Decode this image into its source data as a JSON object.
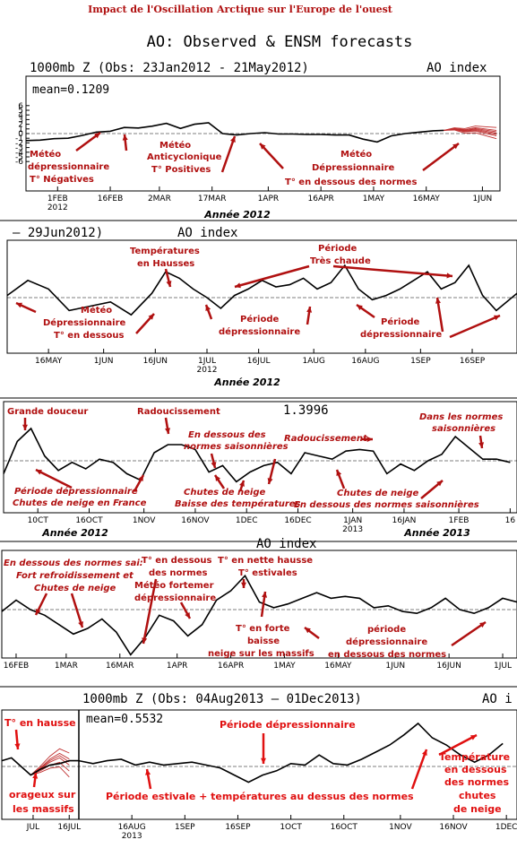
{
  "header": {
    "main_title": "Impact de l'Oscillation Arctique sur l'Europe de l'ouest",
    "subtitle": "AO: Observed & ENSM forecasts"
  },
  "colors": {
    "annotation": "#b01010",
    "annotation_bright": "#e01010",
    "forecast": "#c03030",
    "line": "#000000"
  },
  "chart_data": [
    {
      "type": "line",
      "title": "1000mb Z (Obs: 23Jan2012 - 21May2012)",
      "index_label": "AO index",
      "mean_label": "mean=0.1209",
      "year_label": "Année 2012",
      "ylim": [
        -6,
        6
      ],
      "yticks": [
        -6,
        -5,
        -4,
        -3,
        -2,
        -1,
        0,
        1,
        2,
        3,
        4,
        5,
        6
      ],
      "xrange": [
        0,
        135
      ],
      "xticks": [
        {
          "x": 9,
          "label": "1FEB",
          "sub": "2012"
        },
        {
          "x": 24,
          "label": "16FEB"
        },
        {
          "x": 38,
          "label": "2MAR"
        },
        {
          "x": 53,
          "label": "17MAR"
        },
        {
          "x": 69,
          "label": "1APR"
        },
        {
          "x": 84,
          "label": "16APR"
        },
        {
          "x": 99,
          "label": "1MAY"
        },
        {
          "x": 114,
          "label": "16MAY"
        },
        {
          "x": 130,
          "label": "1JUN"
        }
      ],
      "x": [
        0,
        4,
        8,
        12,
        16,
        20,
        24,
        28,
        32,
        36,
        40,
        44,
        48,
        52,
        56,
        60,
        64,
        68,
        72,
        76,
        80,
        84,
        88,
        92,
        96,
        100,
        104,
        108,
        112,
        116,
        119
      ],
      "values": [
        -1.5,
        -1.4,
        -1.1,
        -1.0,
        -0.4,
        0.3,
        0.5,
        1.3,
        1.2,
        1.6,
        2.2,
        1.1,
        2.0,
        2.3,
        0.0,
        -0.3,
        0.0,
        0.2,
        -0.1,
        -0.1,
        -0.2,
        -0.2,
        -0.3,
        -0.3,
        -1.2,
        -1.8,
        -0.5,
        0.0,
        0.3,
        0.6,
        0.7
      ],
      "forecast_x": [
        119,
        122,
        125,
        128,
        131,
        134
      ],
      "forecast_values": [
        0.7,
        1.0,
        0.6,
        0.9,
        0.5,
        0.1
      ],
      "annotations": {
        "a1": "Météo",
        "a2": "dépressionnaire",
        "a3": "T° Négatives",
        "b1": "Météo",
        "b2": "Anticyclonique",
        "b3": "T° Positives",
        "c1": "Météo",
        "c2": "Dépressionnaire",
        "c3": "T° en dessous des normes"
      }
    },
    {
      "type": "line",
      "title": "– 29Jun2012)",
      "index_label": "AO index",
      "year_label": "Année 2012",
      "xticks": [
        {
          "x": 0,
          "label": "16MAY"
        },
        {
          "x": 16,
          "label": "1JUN"
        },
        {
          "x": 31,
          "label": "16JUN"
        },
        {
          "x": 46,
          "label": "1JUL",
          "sub": "2012"
        },
        {
          "x": 61,
          "label": "16JUL"
        },
        {
          "x": 77,
          "label": "1AUG"
        },
        {
          "x": 92,
          "label": "16AUG"
        },
        {
          "x": 108,
          "label": "1SEP"
        },
        {
          "x": 123,
          "label": "16SEP"
        }
      ],
      "x": [
        -12,
        -6,
        0,
        6,
        12,
        18,
        24,
        30,
        34,
        38,
        42,
        46,
        50,
        54,
        58,
        62,
        66,
        70,
        74,
        78,
        82,
        86,
        90,
        94,
        98,
        102,
        106,
        110,
        114,
        118,
        122,
        126,
        130,
        136
      ],
      "values": [
        0.1,
        0.8,
        0.4,
        -0.6,
        -0.4,
        -0.2,
        -0.8,
        0.2,
        1.2,
        0.9,
        0.4,
        0.0,
        -0.5,
        0.1,
        0.4,
        0.8,
        0.5,
        0.6,
        0.9,
        0.4,
        0.7,
        1.5,
        0.4,
        -0.1,
        0.1,
        0.4,
        0.8,
        1.2,
        0.4,
        0.7,
        1.5,
        0.1,
        -0.6,
        0.2
      ],
      "annotations": {
        "a1": "Températures",
        "a2": "en Hausses",
        "b1": "Période",
        "b2": "Très chaude",
        "c1": "Météo",
        "c2": "Dépressionnaire",
        "c3": "T° en dessous",
        "d1": "Période",
        "d2": "dépressionnaire",
        "e1": "Période",
        "e2": "dépressionnaire"
      }
    },
    {
      "type": "line",
      "title_fragment": "1.3996",
      "year_label_left": "Année 2012",
      "year_label_right": "Année 2013",
      "xticks": [
        {
          "x": 10,
          "label": "10CT"
        },
        {
          "x": 25,
          "label": "16OCT"
        },
        {
          "x": 41,
          "label": "1NOV"
        },
        {
          "x": 56,
          "label": "16NOV"
        },
        {
          "x": 71,
          "label": "1DEC"
        },
        {
          "x": 86,
          "label": "16DEC"
        },
        {
          "x": 102,
          "label": "1JAN",
          "sub": "2013"
        },
        {
          "x": 117,
          "label": "16JAN"
        },
        {
          "x": 133,
          "label": "1FEB"
        },
        {
          "x": 148,
          "label": "16"
        }
      ],
      "x": [
        0,
        4,
        8,
        12,
        16,
        20,
        24,
        28,
        32,
        36,
        40,
        44,
        48,
        52,
        56,
        60,
        64,
        68,
        72,
        76,
        80,
        84,
        88,
        92,
        96,
        100,
        104,
        108,
        112,
        116,
        120,
        124,
        128,
        132,
        136,
        140,
        144,
        148
      ],
      "values": [
        -0.8,
        1.2,
        2.0,
        0.3,
        -0.6,
        -0.1,
        -0.5,
        0.1,
        -0.1,
        -0.8,
        -1.2,
        0.5,
        1.0,
        1.0,
        0.7,
        -0.7,
        -0.3,
        -1.3,
        -0.7,
        -0.3,
        -0.1,
        -0.8,
        0.5,
        0.3,
        0.1,
        0.6,
        0.7,
        0.6,
        -0.8,
        -0.2,
        -0.6,
        0.0,
        0.4,
        1.5,
        0.8,
        0.1,
        0.1,
        -0.1
      ],
      "annotations": {
        "a": "Grande douceur",
        "b": "Radoucissement",
        "c1": "En dessous des",
        "c2": "normes saisonnières",
        "d": "Radoucissement",
        "e1": "Dans les normes",
        "e2": "saisonnières",
        "f1": "Période dépressionnaire",
        "f2": "Chutes de neige en France",
        "g1": "Chutes de neige",
        "g2": "Baisse des températures",
        "h1": "Chutes de neige",
        "h2": "En dessous des normes saisonnières"
      }
    },
    {
      "type": "line",
      "index_label": "AO index",
      "xticks": [
        {
          "x": 0,
          "label": "16FEB"
        },
        {
          "x": 14,
          "label": "1MAR"
        },
        {
          "x": 29,
          "label": "16MAR"
        },
        {
          "x": 45,
          "label": "1APR"
        },
        {
          "x": 60,
          "label": "16APR"
        },
        {
          "x": 75,
          "label": "1MAY"
        },
        {
          "x": 90,
          "label": "16MAY"
        },
        {
          "x": 106,
          "label": "1JUN"
        },
        {
          "x": 121,
          "label": "16JUN"
        },
        {
          "x": 136,
          "label": "1JUL"
        }
      ],
      "x": [
        -4,
        0,
        4,
        8,
        12,
        16,
        20,
        24,
        28,
        32,
        36,
        40,
        44,
        48,
        52,
        56,
        60,
        64,
        68,
        72,
        76,
        80,
        84,
        88,
        92,
        96,
        100,
        104,
        108,
        112,
        116,
        120,
        124,
        128,
        132,
        136,
        140
      ],
      "values": [
        -0.1,
        0.5,
        0.0,
        -0.3,
        -0.8,
        -1.3,
        -1.0,
        -0.5,
        -1.2,
        -2.4,
        -1.5,
        -0.3,
        -0.6,
        -1.4,
        -0.8,
        0.5,
        1.0,
        1.8,
        0.4,
        0.1,
        0.3,
        0.6,
        0.9,
        0.6,
        0.7,
        0.6,
        0.1,
        0.2,
        -0.1,
        -0.2,
        0.1,
        0.6,
        0.0,
        -0.2,
        0.1,
        0.6,
        0.4
      ],
      "annotations": {
        "a1": "En dessous des normes sai:",
        "a2": "Fort refroidissement et",
        "a3": "Chutes de neige",
        "b1": "T° en dessous",
        "b2": "des normes",
        "c1": "Météo fortemer",
        "c2": "dépressionnaire",
        "d1": "T° en nette hausse",
        "d2": "T° estivales",
        "e1": "T° en forte",
        "e2": "baisse",
        "e3": "neige sur les massifs",
        "f1": "période",
        "f2": "dépressionnaire",
        "f3": "en dessous des normes"
      }
    },
    {
      "type": "line",
      "title": "1000mb Z (Obs: 04Aug2013 – 01Dec2013)",
      "index_label": "AO i",
      "mean_label": "mean=0.5532",
      "xticks": [
        {
          "x": -17,
          "label": "JUL"
        },
        {
          "x": -2,
          "label": "16JUL"
        },
        {
          "x": 15,
          "label": "16AUG",
          "sub": "2013"
        },
        {
          "x": 30,
          "label": "1SEP"
        },
        {
          "x": 45,
          "label": "16SEP"
        },
        {
          "x": 60,
          "label": "1OCT"
        },
        {
          "x": 75,
          "label": "16OCT"
        },
        {
          "x": 91,
          "label": "1NOV"
        },
        {
          "x": 106,
          "label": "16NOV"
        },
        {
          "x": 121,
          "label": "1DEC"
        }
      ],
      "x": [
        0,
        4,
        8,
        12,
        16,
        20,
        24,
        28,
        32,
        36,
        40,
        44,
        48,
        52,
        56,
        60,
        64,
        68,
        72,
        76,
        80,
        84,
        88,
        92,
        96,
        100,
        104,
        108,
        112,
        116,
        120
      ],
      "values": [
        0.4,
        0.2,
        0.4,
        0.5,
        0.1,
        0.3,
        0.1,
        0.2,
        0.3,
        0.1,
        -0.1,
        -0.6,
        -1.1,
        -0.6,
        -0.3,
        0.2,
        0.1,
        0.8,
        0.2,
        0.1,
        0.5,
        1.0,
        1.5,
        2.2,
        3.0,
        2.0,
        1.5,
        0.8,
        0.3,
        0.8,
        1.6
      ],
      "pre_x": [
        -30,
        -26,
        -22,
        -18,
        -14,
        -10,
        -6,
        -2,
        2
      ],
      "pre_values": [
        0.4,
        0.6,
        0.0,
        -0.6,
        -0.2,
        0.1,
        0.2,
        0.4,
        0.4
      ],
      "pre_forecast_x": [
        -18,
        -14,
        -10,
        -6,
        -2
      ],
      "pre_forecast_values": [
        -0.6,
        -0.2,
        0.3,
        0.6,
        0.1
      ],
      "annotations": {
        "a": "T° en hausse",
        "b1": "orageux sur",
        "b2": "les massifs",
        "c": "Période dépressionnaire",
        "d": "Période estivale + températures au dessus des normes",
        "e1": "Température",
        "e2": "en dessous",
        "e3": "des normes",
        "e4": "chutes",
        "e5": "de neige"
      }
    }
  ]
}
